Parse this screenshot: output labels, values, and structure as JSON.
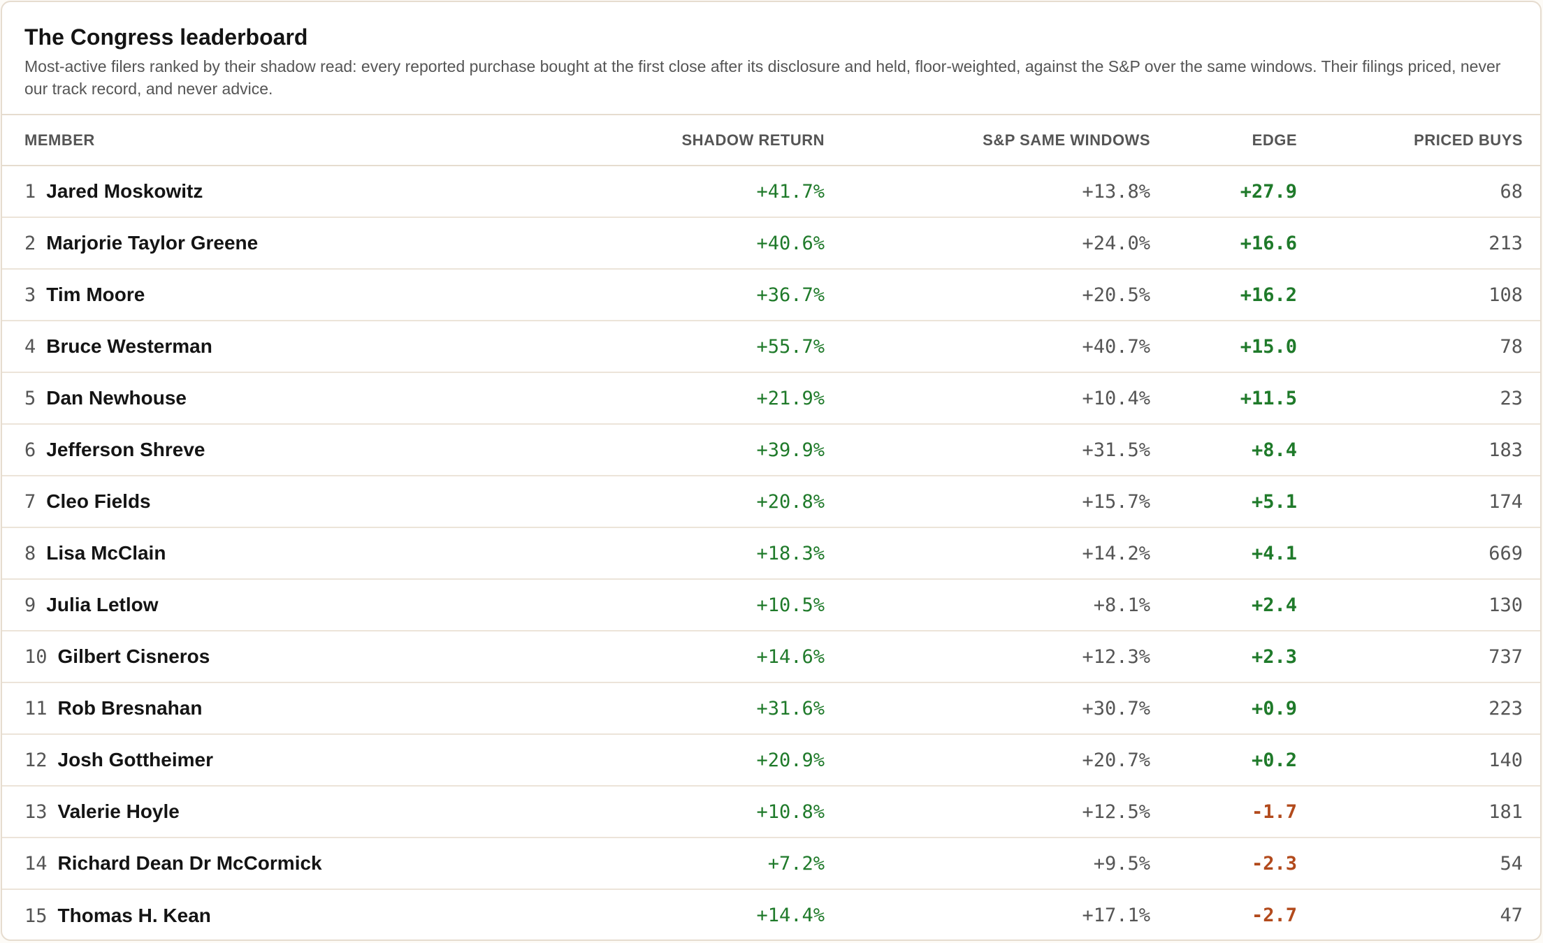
{
  "title": "The Congress leaderboard",
  "subtitle": "Most-active filers ranked by their shadow read: every reported purchase bought at the first close after its disclosure and held, floor-weighted, against the S&P over the same windows. Their filings priced, never our track record, and never advice.",
  "colors": {
    "positive": "#1f7a2a",
    "negative": "#b24a1c",
    "muted": "#555555",
    "border": "#e6dccf"
  },
  "columns": [
    "MEMBER",
    "SHADOW RETURN",
    "S&P SAME WINDOWS",
    "EDGE",
    "PRICED BUYS"
  ],
  "rows": [
    {
      "rank": "1",
      "name": "Jared Moskowitz",
      "shadow": "+41.7%",
      "sp": "+13.8%",
      "edge": "+27.9",
      "buys": "68"
    },
    {
      "rank": "2",
      "name": "Marjorie Taylor Greene",
      "shadow": "+40.6%",
      "sp": "+24.0%",
      "edge": "+16.6",
      "buys": "213"
    },
    {
      "rank": "3",
      "name": "Tim Moore",
      "shadow": "+36.7%",
      "sp": "+20.5%",
      "edge": "+16.2",
      "buys": "108"
    },
    {
      "rank": "4",
      "name": "Bruce Westerman",
      "shadow": "+55.7%",
      "sp": "+40.7%",
      "edge": "+15.0",
      "buys": "78"
    },
    {
      "rank": "5",
      "name": "Dan Newhouse",
      "shadow": "+21.9%",
      "sp": "+10.4%",
      "edge": "+11.5",
      "buys": "23"
    },
    {
      "rank": "6",
      "name": "Jefferson Shreve",
      "shadow": "+39.9%",
      "sp": "+31.5%",
      "edge": "+8.4",
      "buys": "183"
    },
    {
      "rank": "7",
      "name": "Cleo Fields",
      "shadow": "+20.8%",
      "sp": "+15.7%",
      "edge": "+5.1",
      "buys": "174"
    },
    {
      "rank": "8",
      "name": "Lisa McClain",
      "shadow": "+18.3%",
      "sp": "+14.2%",
      "edge": "+4.1",
      "buys": "669"
    },
    {
      "rank": "9",
      "name": "Julia Letlow",
      "shadow": "+10.5%",
      "sp": "+8.1%",
      "edge": "+2.4",
      "buys": "130"
    },
    {
      "rank": "10",
      "name": "Gilbert Cisneros",
      "shadow": "+14.6%",
      "sp": "+12.3%",
      "edge": "+2.3",
      "buys": "737"
    },
    {
      "rank": "11",
      "name": "Rob Bresnahan",
      "shadow": "+31.6%",
      "sp": "+30.7%",
      "edge": "+0.9",
      "buys": "223"
    },
    {
      "rank": "12",
      "name": "Josh Gottheimer",
      "shadow": "+20.9%",
      "sp": "+20.7%",
      "edge": "+0.2",
      "buys": "140"
    },
    {
      "rank": "13",
      "name": "Valerie Hoyle",
      "shadow": "+10.8%",
      "sp": "+12.5%",
      "edge": "-1.7",
      "buys": "181"
    },
    {
      "rank": "14",
      "name": "Richard Dean Dr McCormick",
      "shadow": "+7.2%",
      "sp": "+9.5%",
      "edge": "-2.3",
      "buys": "54"
    },
    {
      "rank": "15",
      "name": "Thomas H. Kean",
      "shadow": "+14.4%",
      "sp": "+17.1%",
      "edge": "-2.7",
      "buys": "47"
    }
  ]
}
